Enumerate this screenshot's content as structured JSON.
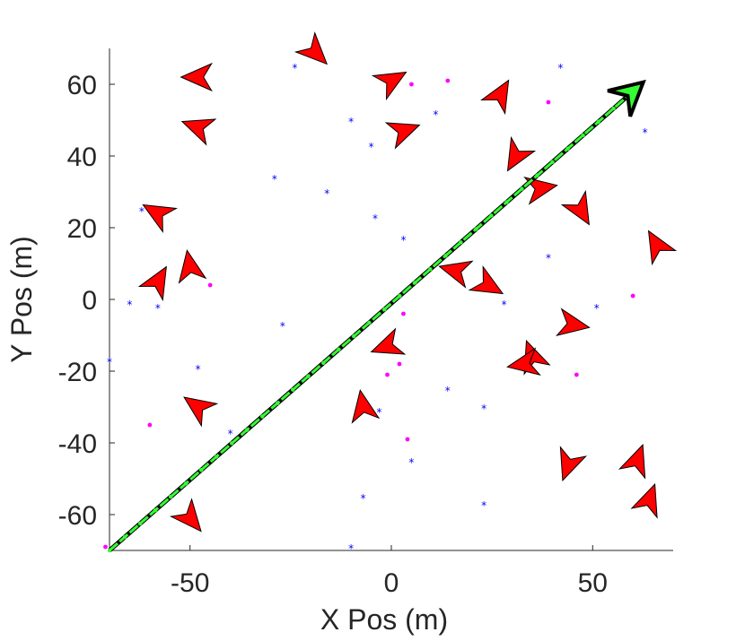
{
  "chart_data": {
    "type": "scatter",
    "xlabel": "X Pos (m)",
    "ylabel": "Y Pos (m)",
    "xlim": [
      -70,
      70
    ],
    "ylim": [
      -70,
      70
    ],
    "xticks": [
      -50,
      0,
      50
    ],
    "xtick_labels": [
      "-50",
      "0",
      "50"
    ],
    "yticks": [
      -60,
      -40,
      -20,
      0,
      20,
      40,
      60
    ],
    "ytick_labels": [
      "-60",
      "-40",
      "-20",
      "0",
      "20",
      "40",
      "60"
    ],
    "grid": false,
    "colors": {
      "agents": "#ff0000",
      "path_line": "#000000",
      "trajectory": "#33ff33",
      "blue_points": "#0000ff",
      "magenta_points": "#ff00ff"
    },
    "path": {
      "start": [
        -70,
        -70
      ],
      "end": [
        59,
        57
      ]
    },
    "agents": [
      {
        "x": -19,
        "y": 69,
        "heading": -45
      },
      {
        "x": -48,
        "y": 62,
        "heading": 180
      },
      {
        "x": -48,
        "y": 48,
        "heading": 160
      },
      {
        "x": 0,
        "y": 61,
        "heading": 30
      },
      {
        "x": 3,
        "y": 47,
        "heading": 20
      },
      {
        "x": 27,
        "y": 57,
        "heading": 60
      },
      {
        "x": 31,
        "y": 40,
        "heading": -120
      },
      {
        "x": 37,
        "y": 31,
        "heading": 10
      },
      {
        "x": 47,
        "y": 25,
        "heading": -60
      },
      {
        "x": 66,
        "y": 15,
        "heading": 120
      },
      {
        "x": -58,
        "y": 24,
        "heading": 150
      },
      {
        "x": -58,
        "y": 5,
        "heading": 60
      },
      {
        "x": -50,
        "y": 9,
        "heading": 100
      },
      {
        "x": 16,
        "y": 8,
        "heading": 165
      },
      {
        "x": 24,
        "y": 4,
        "heading": -30
      },
      {
        "x": 45,
        "y": -7,
        "heading": -10
      },
      {
        "x": -1,
        "y": -13,
        "heading": -160
      },
      {
        "x": 35,
        "y": -16,
        "heading": 110
      },
      {
        "x": 33,
        "y": -18,
        "heading": 190
      },
      {
        "x": -7,
        "y": -30,
        "heading": 100
      },
      {
        "x": -48,
        "y": -30,
        "heading": 145
      },
      {
        "x": 44,
        "y": -46,
        "heading": -110
      },
      {
        "x": 61,
        "y": -45,
        "heading": 70
      },
      {
        "x": 64,
        "y": -56,
        "heading": 70
      },
      {
        "x": -50,
        "y": -61,
        "heading": -50
      }
    ],
    "blue_points": [
      [
        -24,
        65
      ],
      [
        -10,
        50
      ],
      [
        -5,
        43
      ],
      [
        11,
        52
      ],
      [
        42,
        65
      ],
      [
        63,
        47
      ],
      [
        -29,
        34
      ],
      [
        -16,
        30
      ],
      [
        -4,
        23
      ],
      [
        3,
        17
      ],
      [
        39,
        12
      ],
      [
        -62,
        25
      ],
      [
        -65,
        -1
      ],
      [
        -58,
        -2
      ],
      [
        -27,
        -7
      ],
      [
        28,
        -1
      ],
      [
        51,
        -2
      ],
      [
        -70,
        -17
      ],
      [
        -48,
        -19
      ],
      [
        -3,
        -31
      ],
      [
        14,
        -25
      ],
      [
        23,
        -30
      ],
      [
        -40,
        -37
      ],
      [
        5,
        -45
      ],
      [
        -7,
        -55
      ],
      [
        23,
        -57
      ],
      [
        -10,
        -69
      ]
    ],
    "magenta_points": [
      [
        5,
        60
      ],
      [
        14,
        61
      ],
      [
        39,
        55
      ],
      [
        -45,
        4
      ],
      [
        60,
        1
      ],
      [
        3,
        -4
      ],
      [
        -1,
        -21
      ],
      [
        2,
        -18
      ],
      [
        46,
        -21
      ],
      [
        -60,
        -35
      ],
      [
        4,
        -39
      ],
      [
        -71,
        -69
      ]
    ]
  }
}
